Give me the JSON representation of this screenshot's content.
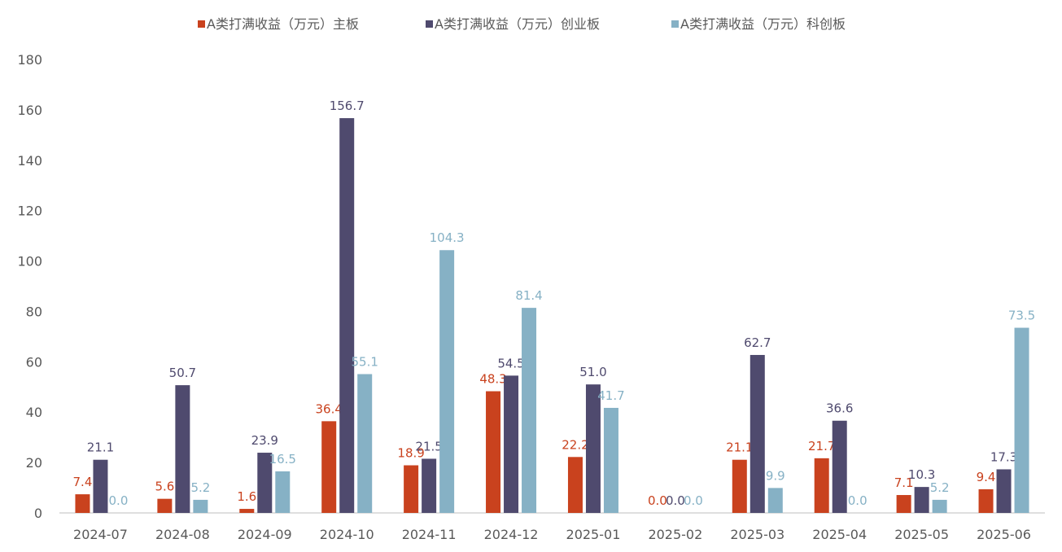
{
  "chart_data": {
    "type": "bar",
    "categories": [
      "2024-07",
      "2024-08",
      "2024-09",
      "2024-10",
      "2024-11",
      "2024-12",
      "2025-01",
      "2025-02",
      "2025-03",
      "2025-04",
      "2025-05",
      "2025-06"
    ],
    "series": [
      {
        "name": "A类打满收益（万元）主板",
        "color": "#C9421E",
        "values": [
          7.4,
          5.6,
          1.6,
          36.4,
          18.9,
          48.3,
          22.2,
          0.0,
          21.1,
          21.7,
          7.1,
          9.4
        ]
      },
      {
        "name": "A类打满收益（万元）创业板",
        "color": "#4F4A6E",
        "values": [
          21.1,
          50.7,
          23.9,
          156.7,
          21.5,
          54.5,
          51.0,
          0.0,
          62.7,
          36.6,
          10.3,
          17.3
        ]
      },
      {
        "name": "A类打满收益（万元）科创板",
        "color": "#86B1C5",
        "values": [
          0.0,
          5.2,
          16.5,
          55.1,
          104.3,
          81.4,
          41.7,
          0.0,
          9.9,
          0.0,
          5.2,
          73.5
        ]
      }
    ],
    "ylim": [
      0,
      180
    ],
    "yticks": [
      0,
      20,
      40,
      60,
      80,
      100,
      120,
      140,
      160,
      180
    ],
    "grid": false,
    "legend_position": "top"
  }
}
